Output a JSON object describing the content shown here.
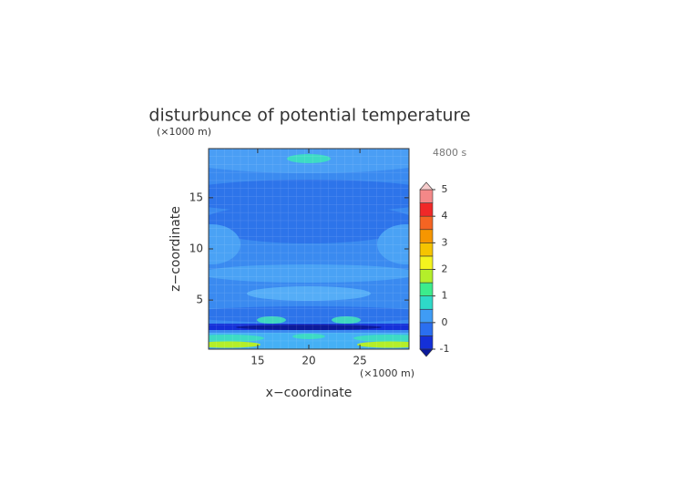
{
  "chart_data": {
    "type": "contour",
    "title": "disturbunce of potential temperature",
    "x_label": "x−coordinate",
    "y_label": "z−coordinate",
    "x_unit": "(×1000 m)",
    "y_unit": "(×1000 m)",
    "time_label": "4800 s",
    "xlim": [
      10.2,
      29.8
    ],
    "ylim": [
      0.2,
      19.8
    ],
    "xticks": [
      15,
      20,
      25
    ],
    "yticks": [
      5,
      10,
      15
    ],
    "colorbar": {
      "levels": [
        -1,
        -0.5,
        0,
        0.5,
        1,
        1.5,
        2,
        2.5,
        3,
        3.5,
        4,
        4.5,
        5
      ],
      "colors": [
        "#1430d8",
        "#2a6ff0",
        "#3f9cf5",
        "#2ed9c8",
        "#3cec8c",
        "#b4ee2a",
        "#f4f41e",
        "#f6c400",
        "#f69600",
        "#f56422",
        "#f02828",
        "#f48888"
      ],
      "under_color": "#0c1a9a",
      "over_color": "#f6cccc",
      "ticks": [
        -1,
        0,
        1,
        2,
        3,
        4,
        5
      ]
    }
  }
}
